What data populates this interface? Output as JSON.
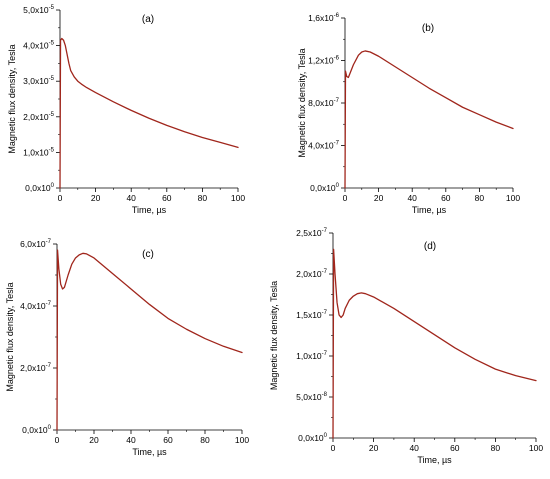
{
  "chart_data": [
    {
      "type": "line",
      "panel_label": "(a)",
      "xlabel": "Time, µs",
      "ylabel": "Magnetic flux density, Tesla",
      "xlim": [
        0,
        100
      ],
      "ylim": [
        0,
        5e-05
      ],
      "x_ticks": [
        "0",
        "20",
        "40",
        "60",
        "80",
        "100"
      ],
      "y_ticks": [
        {
          "mant": "0,0x10",
          "exp": "0"
        },
        {
          "mant": "1,0x10",
          "exp": "-5"
        },
        {
          "mant": "2,0x10",
          "exp": "-5"
        },
        {
          "mant": "3,0x10",
          "exp": "-5"
        },
        {
          "mant": "4,0x10",
          "exp": "-5"
        },
        {
          "mant": "5,0x10",
          "exp": "-5"
        }
      ],
      "series": [
        {
          "color": "#a0261c",
          "x": [
            0,
            0.3,
            1,
            2,
            3,
            4,
            5,
            6,
            8,
            10,
            12,
            15,
            20,
            30,
            40,
            50,
            60,
            70,
            80,
            90,
            100
          ],
          "y": [
            0,
            4.15e-05,
            4.2e-05,
            4.15e-05,
            4e-05,
            3.75e-05,
            3.5e-05,
            3.3e-05,
            3.12e-05,
            3e-05,
            2.92e-05,
            2.82e-05,
            2.68e-05,
            2.42e-05,
            2.18e-05,
            1.96e-05,
            1.76e-05,
            1.58e-05,
            1.42e-05,
            1.28e-05,
            1.14e-05
          ]
        }
      ]
    },
    {
      "type": "line",
      "panel_label": "(b)",
      "xlabel": "Time, µs",
      "ylabel": "Magnetic flux density, Tesla",
      "xlim": [
        0,
        100
      ],
      "ylim": [
        0,
        1.6e-06
      ],
      "x_ticks": [
        "0",
        "20",
        "40",
        "60",
        "80",
        "100"
      ],
      "y_ticks": [
        {
          "mant": "0,0x10",
          "exp": "0"
        },
        {
          "mant": "4,0x10",
          "exp": "-7"
        },
        {
          "mant": "8,0x10",
          "exp": "-7"
        },
        {
          "mant": "1,2x10",
          "exp": "-6"
        },
        {
          "mant": "1,6x10",
          "exp": "-6"
        }
      ],
      "series": [
        {
          "color": "#a0261c",
          "x": [
            0,
            0.3,
            1,
            2,
            3,
            5,
            8,
            10,
            12,
            15,
            20,
            30,
            40,
            50,
            60,
            70,
            80,
            90,
            100
          ],
          "y": [
            0,
            1.1e-06,
            1.05e-06,
            1.04e-06,
            1.08e-06,
            1.16e-06,
            1.25e-06,
            1.28e-06,
            1.29e-06,
            1.28e-06,
            1.24e-06,
            1.14e-06,
            1.04e-06,
            9.4e-07,
            8.5e-07,
            7.6e-07,
            6.9e-07,
            6.2e-07,
            5.6e-07
          ]
        }
      ]
    },
    {
      "type": "line",
      "panel_label": "(c)",
      "xlabel": "Time, µs",
      "ylabel": "Magnetic flux density, Tesla",
      "xlim": [
        0,
        100
      ],
      "ylim": [
        0,
        6e-07
      ],
      "x_ticks": [
        "0",
        "20",
        "40",
        "60",
        "80",
        "100"
      ],
      "y_ticks": [
        {
          "mant": "0,0x10",
          "exp": "0"
        },
        {
          "mant": "2,0x10",
          "exp": "-7"
        },
        {
          "mant": "4,0x10",
          "exp": "-7"
        },
        {
          "mant": "6,0x10",
          "exp": "-7"
        }
      ],
      "series": [
        {
          "color": "#a0261c",
          "x": [
            0,
            0.3,
            1,
            2,
            3,
            4,
            6,
            8,
            10,
            12,
            14,
            16,
            20,
            30,
            40,
            50,
            60,
            70,
            80,
            90,
            100
          ],
          "y": [
            0,
            5.8e-07,
            5.2e-07,
            4.7e-07,
            4.55e-07,
            4.6e-07,
            5e-07,
            5.35e-07,
            5.55e-07,
            5.65e-07,
            5.7e-07,
            5.68e-07,
            5.55e-07,
            5.05e-07,
            4.55e-07,
            4.05e-07,
            3.6e-07,
            3.25e-07,
            2.95e-07,
            2.7e-07,
            2.5e-07
          ]
        }
      ]
    },
    {
      "type": "line",
      "panel_label": "(d)",
      "xlabel": "Time, µs",
      "ylabel": "Magnetic flux density, Tesla",
      "xlim": [
        0,
        100
      ],
      "ylim": [
        0,
        2.5e-07
      ],
      "x_ticks": [
        "0",
        "20",
        "40",
        "60",
        "80",
        "100"
      ],
      "y_ticks": [
        {
          "mant": "0,0x10",
          "exp": "0"
        },
        {
          "mant": "5,0x10",
          "exp": "-8"
        },
        {
          "mant": "1,0x10",
          "exp": "-7"
        },
        {
          "mant": "1,5x10",
          "exp": "-7"
        },
        {
          "mant": "2,0x10",
          "exp": "-7"
        },
        {
          "mant": "2,5x10",
          "exp": "-7"
        }
      ],
      "series": [
        {
          "color": "#a0261c",
          "x": [
            0,
            0.3,
            1,
            2,
            3,
            4,
            5,
            6,
            8,
            10,
            12,
            14,
            16,
            20,
            30,
            40,
            50,
            60,
            70,
            80,
            90,
            100
          ],
          "y": [
            0,
            2.3e-07,
            2e-07,
            1.65e-07,
            1.5e-07,
            1.47e-07,
            1.5e-07,
            1.58e-07,
            1.68e-07,
            1.73e-07,
            1.76e-07,
            1.77e-07,
            1.76e-07,
            1.72e-07,
            1.58e-07,
            1.42e-07,
            1.26e-07,
            1.1e-07,
            9.6e-08,
            8.4e-08,
            7.6e-08,
            7e-08
          ]
        }
      ]
    }
  ]
}
